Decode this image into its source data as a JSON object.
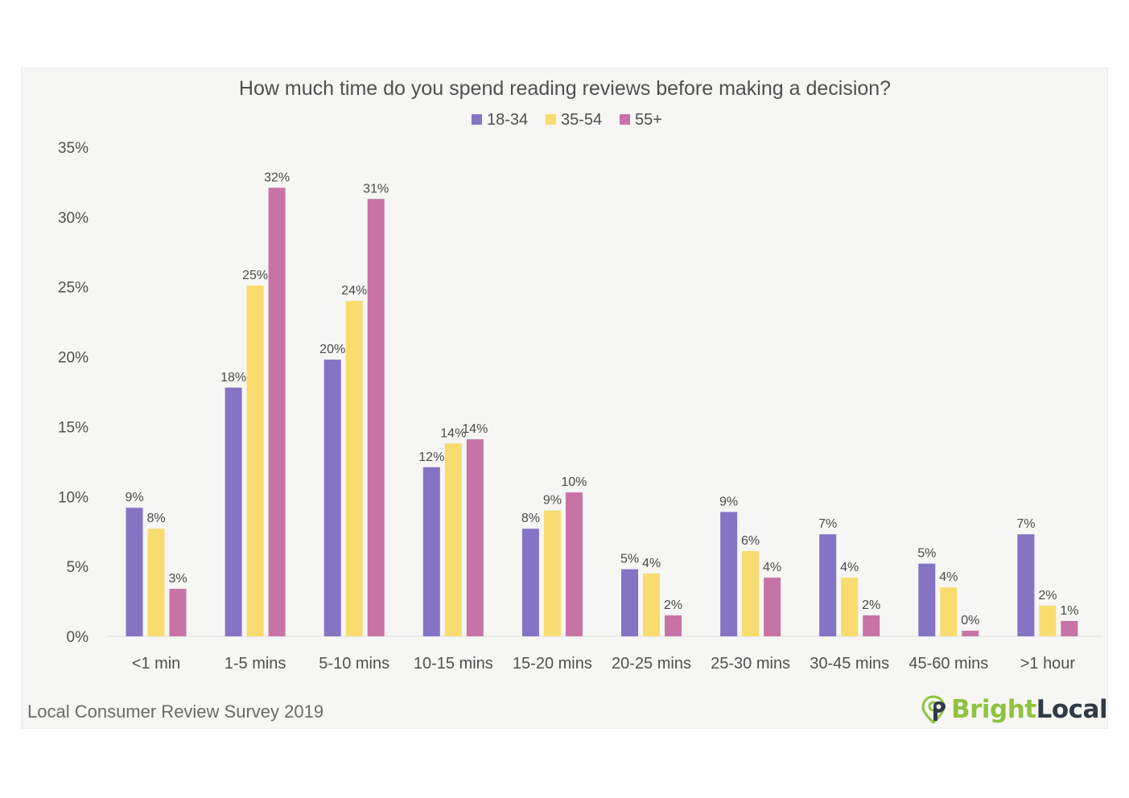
{
  "chart_data": {
    "type": "bar",
    "title": "How much time do you spend reading reviews before making a decision?",
    "categories": [
      "<1 min",
      "1-5 mins",
      "5-10 mins",
      "10-15 mins",
      "15-20 mins",
      "20-25 mins",
      "25-30 mins",
      "30-45 mins",
      "45-60 mins",
      ">1 hour"
    ],
    "series": [
      {
        "name": "18-34",
        "color": "#8573c6",
        "values": [
          9.2,
          17.8,
          19.8,
          12.1,
          7.7,
          4.8,
          8.9,
          7.3,
          5.2,
          7.3
        ],
        "labels": [
          "9%",
          "18%",
          "20%",
          "12%",
          "8%",
          "5%",
          "9%",
          "7%",
          "5%",
          "7%"
        ]
      },
      {
        "name": "35-54",
        "color": "#f9dc6f",
        "values": [
          7.7,
          25.1,
          24.0,
          13.8,
          9.0,
          4.5,
          6.1,
          4.2,
          3.5,
          2.2
        ],
        "labels": [
          "8%",
          "25%",
          "24%",
          "14%",
          "9%",
          "4%",
          "6%",
          "4%",
          "4%",
          "2%"
        ]
      },
      {
        "name": "55+",
        "color": "#c873a6",
        "values": [
          3.4,
          32.1,
          31.3,
          14.1,
          10.3,
          1.5,
          4.2,
          1.5,
          0.4,
          1.1
        ],
        "labels": [
          "3%",
          "32%",
          "31%",
          "14%",
          "10%",
          "2%",
          "4%",
          "2%",
          "0%",
          "1%"
        ]
      }
    ],
    "yticks": [
      "0%",
      "5%",
      "10%",
      "15%",
      "20%",
      "25%",
      "30%",
      "35%"
    ],
    "ylim": [
      0,
      35
    ],
    "xlabel": "",
    "ylabel": "",
    "grid": false,
    "legend": "top-center"
  },
  "footer": {
    "source": "Local Consumer Review Survey 2019",
    "brand_bright": "Bright",
    "brand_local": "Local",
    "brand_icon": "location-pin-icon"
  }
}
